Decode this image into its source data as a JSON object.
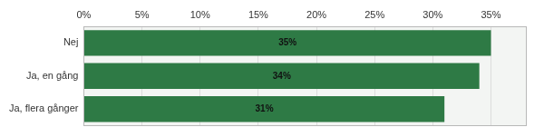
{
  "chart_data": {
    "type": "bar",
    "orientation": "horizontal",
    "categories": [
      "Nej",
      "Ja, en gång",
      "Ja, flera gånger"
    ],
    "values": [
      35,
      34,
      31
    ],
    "value_labels": [
      "35%",
      "34%",
      "31%"
    ],
    "color": "#2e7a45",
    "xlim": [
      0,
      38
    ],
    "xticks": [
      {
        "value": 0,
        "label": "0%"
      },
      {
        "value": 5,
        "label": "5%"
      },
      {
        "value": 10,
        "label": "10%"
      },
      {
        "value": 15,
        "label": "15%"
      },
      {
        "value": 20,
        "label": "20%"
      },
      {
        "value": 25,
        "label": "25%"
      },
      {
        "value": 30,
        "label": "30%"
      },
      {
        "value": 35,
        "label": "35%"
      }
    ],
    "grid": true,
    "data_labels": true
  }
}
